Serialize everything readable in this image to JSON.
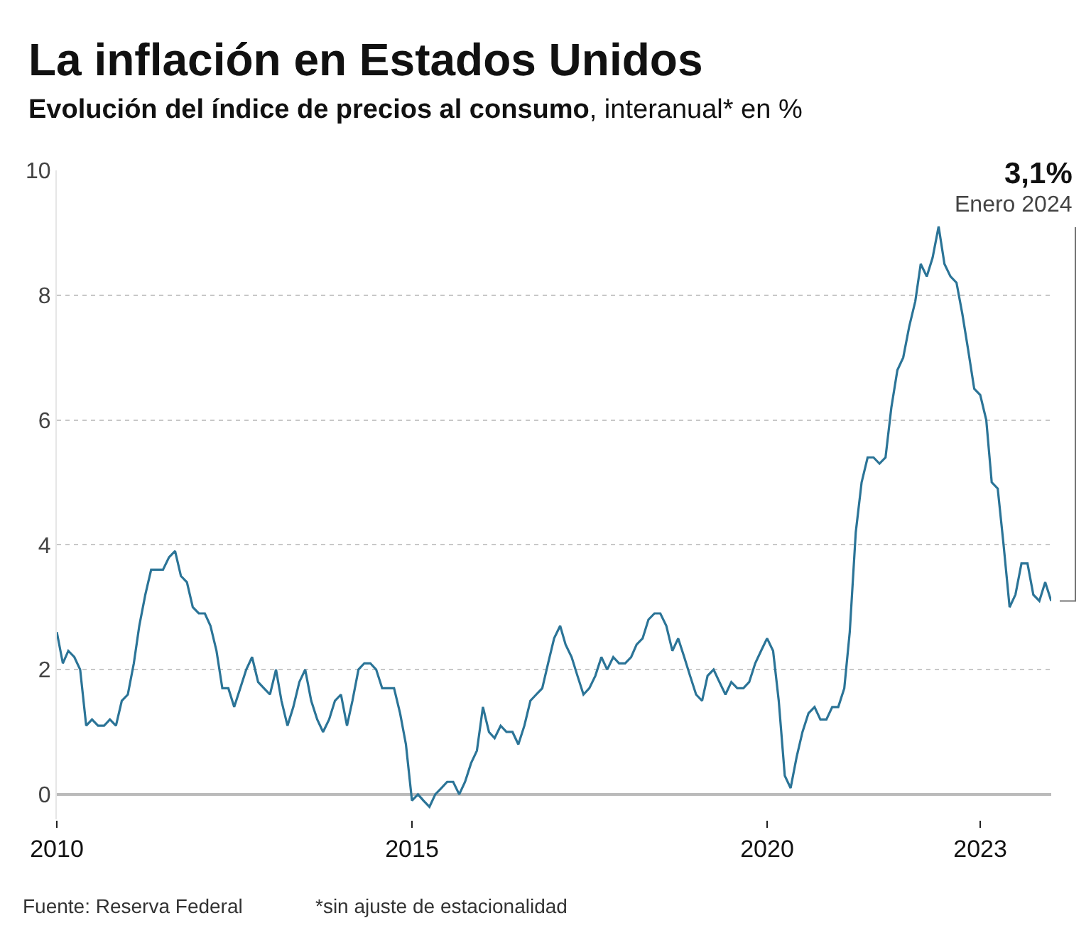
{
  "chart_data": {
    "type": "line",
    "title": "La inflación en Estados Unidos",
    "subtitle": "Evolución del índice de precios al consumo, interanual* en %",
    "annotations": [
      {
        "text": "3,1%",
        "x": "2024-01",
        "y": 3.1
      },
      "Enero 2024",
      "Fuente: Reserva Federal",
      "*sin ajuste de estacionalidad"
    ],
    "xlim": [
      "2010-01",
      "2024-01"
    ],
    "xticks": [
      "2010",
      "2015",
      "2020",
      "2023"
    ],
    "ylim": [
      -0.4,
      10
    ],
    "yticks": [
      0,
      2,
      4,
      6,
      8,
      10
    ],
    "grid": "y",
    "marker": "none",
    "line_style": "solid",
    "series": [
      {
        "color": "#2b7497",
        "x": [
          "2010-01",
          "2010-02",
          "2010-03",
          "2010-04",
          "2010-05",
          "2010-06",
          "2010-07",
          "2010-08",
          "2010-09",
          "2010-10",
          "2010-11",
          "2010-12",
          "2011-01",
          "2011-02",
          "2011-03",
          "2011-04",
          "2011-05",
          "2011-06",
          "2011-07",
          "2011-08",
          "2011-09",
          "2011-10",
          "2011-11",
          "2011-12",
          "2012-01",
          "2012-02",
          "2012-03",
          "2012-04",
          "2012-05",
          "2012-06",
          "2012-07",
          "2012-08",
          "2012-09",
          "2012-10",
          "2012-11",
          "2012-12",
          "2013-01",
          "2013-02",
          "2013-03",
          "2013-04",
          "2013-05",
          "2013-06",
          "2013-07",
          "2013-08",
          "2013-09",
          "2013-10",
          "2013-11",
          "2013-12",
          "2014-01",
          "2014-02",
          "2014-03",
          "2014-04",
          "2014-05",
          "2014-06",
          "2014-07",
          "2014-08",
          "2014-09",
          "2014-10",
          "2014-11",
          "2014-12",
          "2015-01",
          "2015-02",
          "2015-03",
          "2015-04",
          "2015-05",
          "2015-06",
          "2015-07",
          "2015-08",
          "2015-09",
          "2015-10",
          "2015-11",
          "2015-12",
          "2016-01",
          "2016-02",
          "2016-03",
          "2016-04",
          "2016-05",
          "2016-06",
          "2016-07",
          "2016-08",
          "2016-09",
          "2016-10",
          "2016-11",
          "2016-12",
          "2017-01",
          "2017-02",
          "2017-03",
          "2017-04",
          "2017-05",
          "2017-06",
          "2017-07",
          "2017-08",
          "2017-09",
          "2017-10",
          "2017-11",
          "2017-12",
          "2018-01",
          "2018-02",
          "2018-03",
          "2018-04",
          "2018-05",
          "2018-06",
          "2018-07",
          "2018-08",
          "2018-09",
          "2018-10",
          "2018-11",
          "2018-12",
          "2019-01",
          "2019-02",
          "2019-03",
          "2019-04",
          "2019-05",
          "2019-06",
          "2019-07",
          "2019-08",
          "2019-09",
          "2019-10",
          "2019-11",
          "2019-12",
          "2020-01",
          "2020-02",
          "2020-03",
          "2020-04",
          "2020-05",
          "2020-06",
          "2020-07",
          "2020-08",
          "2020-09",
          "2020-10",
          "2020-11",
          "2020-12",
          "2021-01",
          "2021-02",
          "2021-03",
          "2021-04",
          "2021-05",
          "2021-06",
          "2021-07",
          "2021-08",
          "2021-09",
          "2021-10",
          "2021-11",
          "2021-12",
          "2022-01",
          "2022-02",
          "2022-03",
          "2022-04",
          "2022-05",
          "2022-06",
          "2022-07",
          "2022-08",
          "2022-09",
          "2022-10",
          "2022-11",
          "2022-12",
          "2023-01",
          "2023-02",
          "2023-03",
          "2023-04",
          "2023-05",
          "2023-06",
          "2023-07",
          "2023-08",
          "2023-09",
          "2023-10",
          "2023-11",
          "2023-12",
          "2024-01"
        ],
        "values": [
          2.6,
          2.1,
          2.3,
          2.2,
          2.0,
          1.1,
          1.2,
          1.1,
          1.1,
          1.2,
          1.1,
          1.5,
          1.6,
          2.1,
          2.7,
          3.2,
          3.6,
          3.6,
          3.6,
          3.8,
          3.9,
          3.5,
          3.4,
          3.0,
          2.9,
          2.9,
          2.7,
          2.3,
          1.7,
          1.7,
          1.4,
          1.7,
          2.0,
          2.2,
          1.8,
          1.7,
          1.6,
          2.0,
          1.5,
          1.1,
          1.4,
          1.8,
          2.0,
          1.5,
          1.2,
          1.0,
          1.2,
          1.5,
          1.6,
          1.1,
          1.5,
          2.0,
          2.1,
          2.1,
          2.0,
          1.7,
          1.7,
          1.7,
          1.3,
          0.8,
          -0.1,
          0.0,
          -0.1,
          -0.2,
          0.0,
          0.1,
          0.2,
          0.2,
          0.0,
          0.2,
          0.5,
          0.7,
          1.4,
          1.0,
          0.9,
          1.1,
          1.0,
          1.0,
          0.8,
          1.1,
          1.5,
          1.6,
          1.7,
          2.1,
          2.5,
          2.7,
          2.4,
          2.2,
          1.9,
          1.6,
          1.7,
          1.9,
          2.2,
          2.0,
          2.2,
          2.1,
          2.1,
          2.2,
          2.4,
          2.5,
          2.8,
          2.9,
          2.9,
          2.7,
          2.3,
          2.5,
          2.2,
          1.9,
          1.6,
          1.5,
          1.9,
          2.0,
          1.8,
          1.6,
          1.8,
          1.7,
          1.7,
          1.8,
          2.1,
          2.3,
          2.5,
          2.3,
          1.5,
          0.3,
          0.1,
          0.6,
          1.0,
          1.3,
          1.4,
          1.2,
          1.2,
          1.4,
          1.4,
          1.7,
          2.6,
          4.2,
          5.0,
          5.4,
          5.4,
          5.3,
          5.4,
          6.2,
          6.8,
          7.0,
          7.5,
          7.9,
          8.5,
          8.3,
          8.6,
          9.1,
          8.5,
          8.3,
          8.2,
          7.7,
          7.1,
          6.5,
          6.4,
          6.0,
          5.0,
          4.9,
          4.0,
          3.0,
          3.2,
          3.7,
          3.7,
          3.2,
          3.1,
          3.4,
          3.1
        ]
      }
    ]
  }
}
